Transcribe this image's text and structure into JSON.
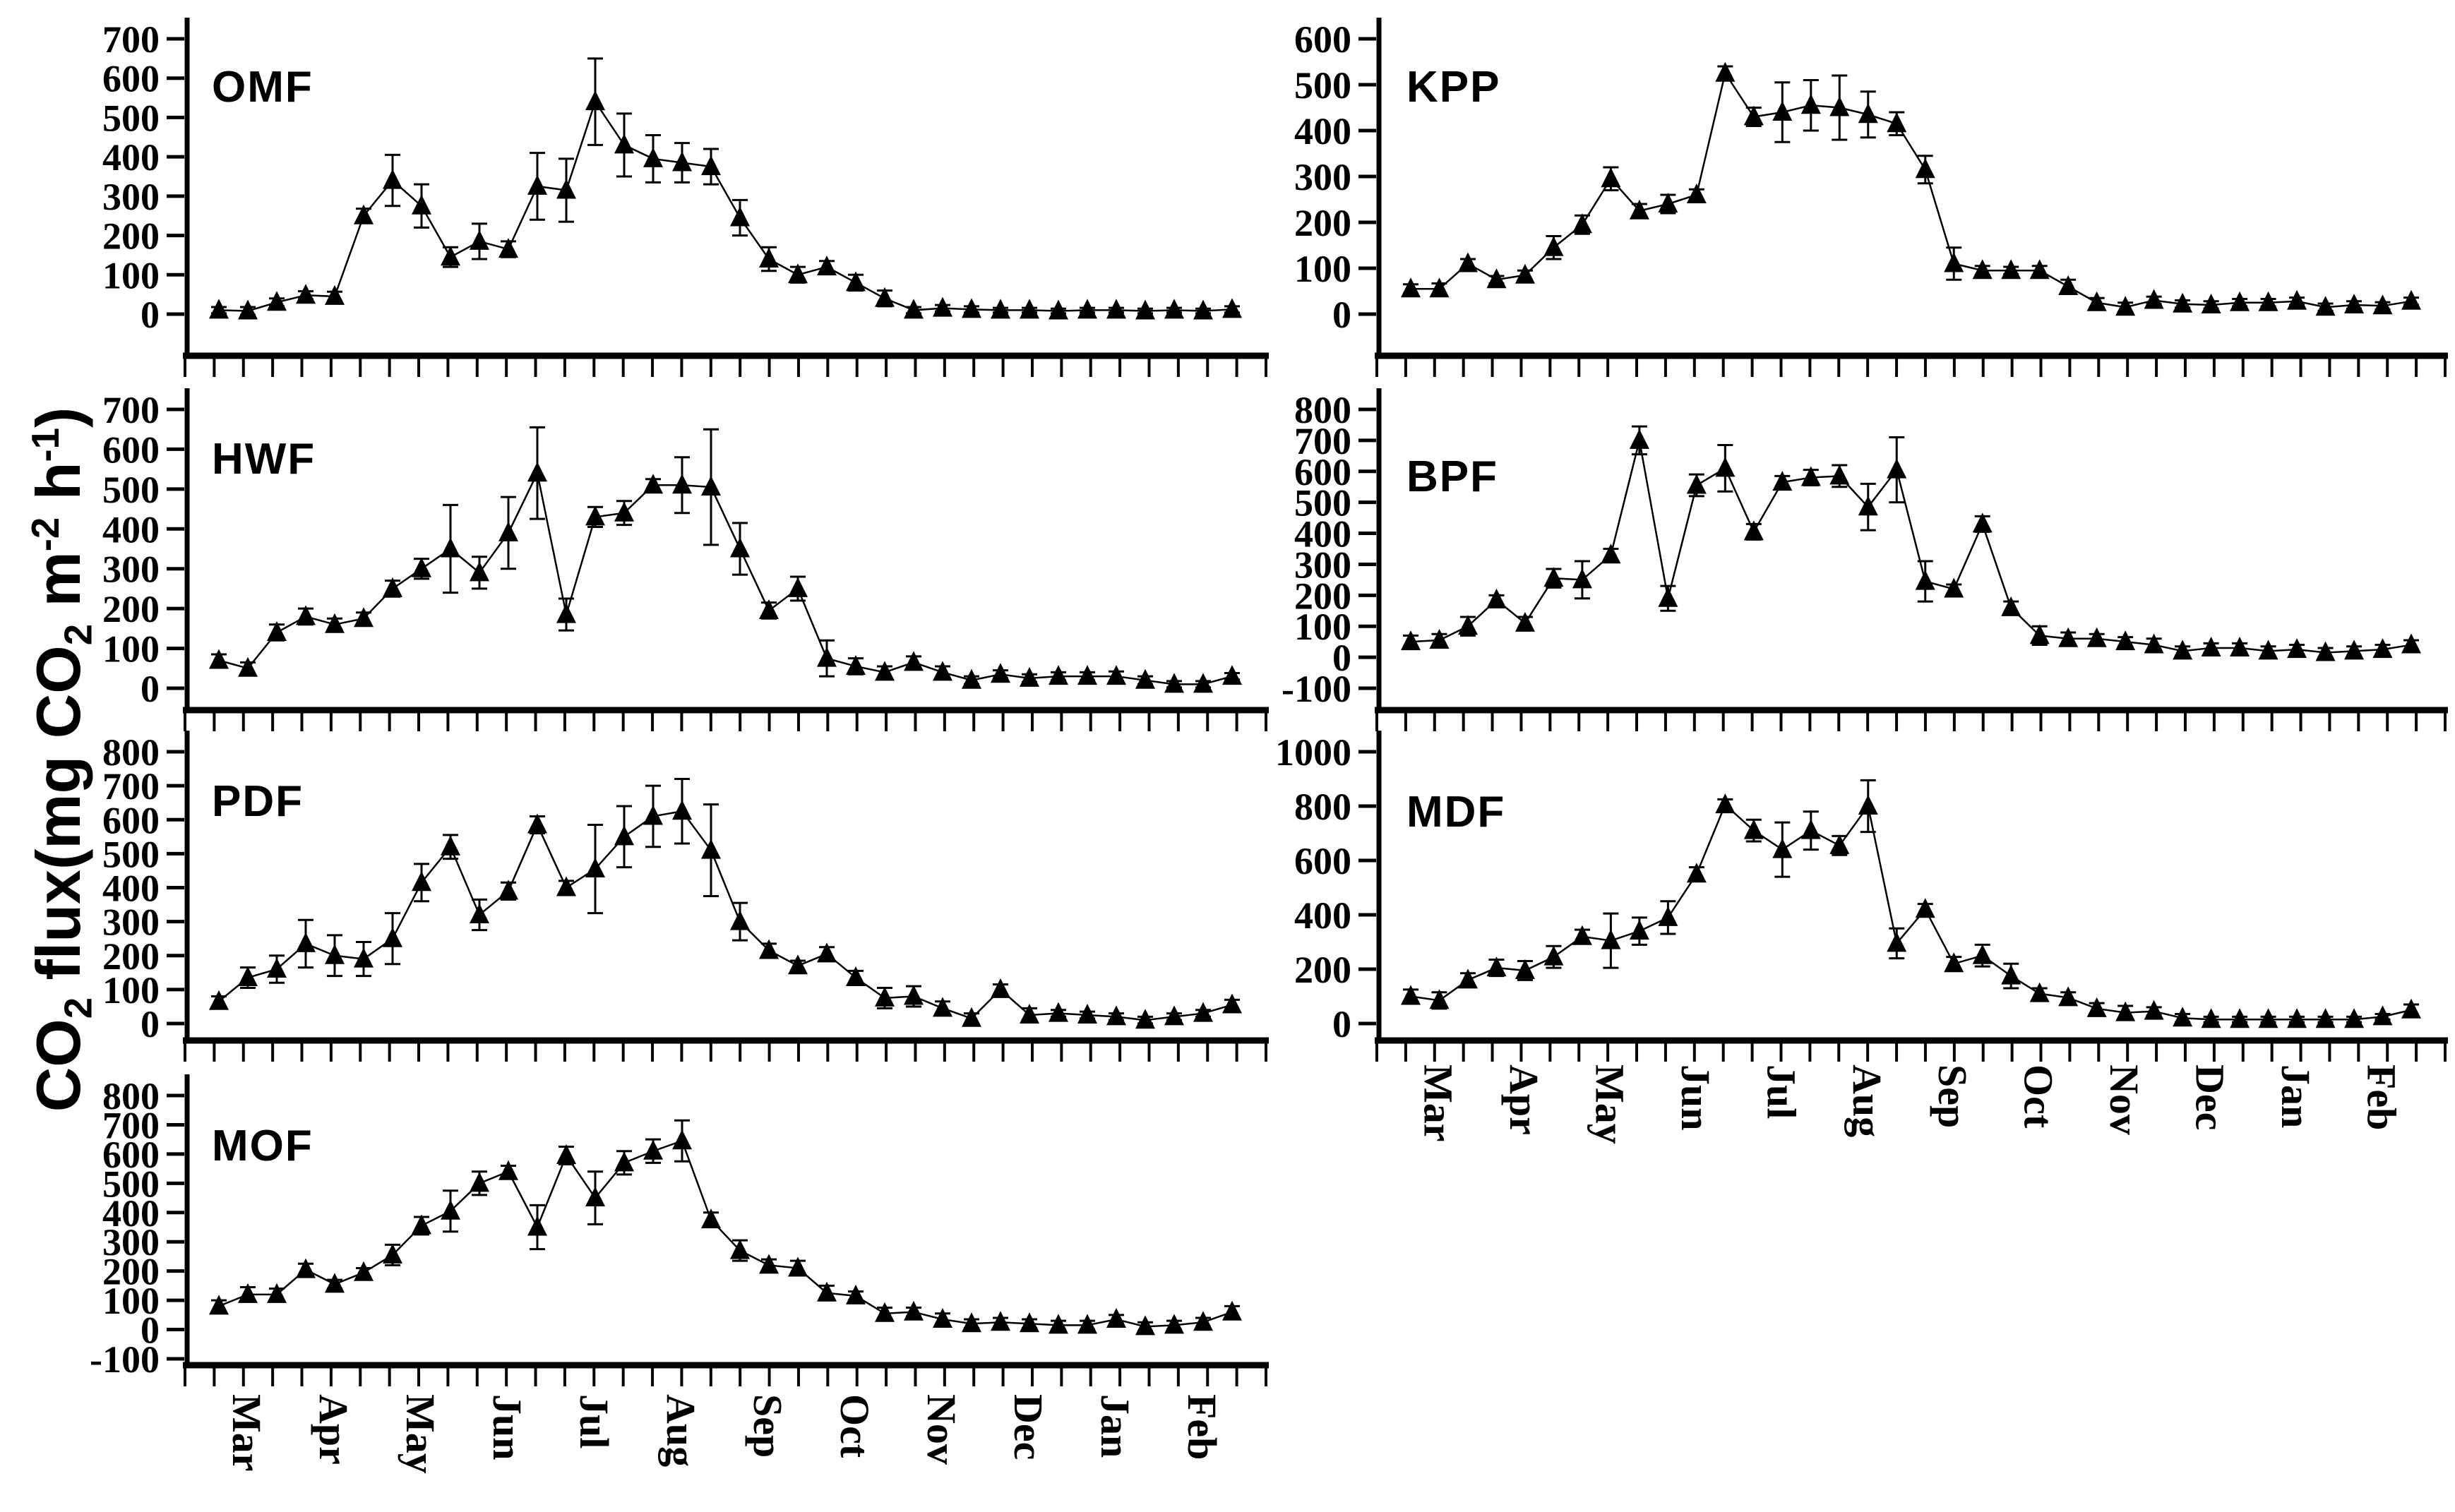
{
  "figure": {
    "background": "#ffffff",
    "series_color": "#000000",
    "marker": "filled-triangle-up",
    "error_bars": "plus-minus-with-caps",
    "ylabel_segments": [
      {
        "text": "CO"
      },
      {
        "text": "2",
        "style": "sub"
      },
      {
        "text": " flux(mg CO"
      },
      {
        "text": "2",
        "style": "sub"
      },
      {
        "text": " m"
      },
      {
        "text": "-2",
        "style": "sup"
      },
      {
        "text": " h"
      },
      {
        "text": "-1",
        "style": "sup"
      },
      {
        "text": ")"
      }
    ]
  },
  "chart_data": {
    "type": "line",
    "x_categories": [
      "Mar",
      "Apr",
      "May",
      "Jun",
      "Jul",
      "Aug",
      "Sep",
      "Oct",
      "Nov",
      "Dec",
      "Jan",
      "Feb"
    ],
    "points_per_month": 3,
    "legend": "none",
    "grid": "off",
    "panels": [
      {
        "title": "OMF",
        "ylim": [
          0,
          700
        ],
        "ytick_step": 100,
        "values": [
          10,
          8,
          30,
          48,
          45,
          250,
          340,
          275,
          145,
          185,
          165,
          325,
          315,
          540,
          430,
          395,
          385,
          375,
          245,
          140,
          100,
          120,
          80,
          40,
          10,
          15,
          12,
          10,
          10,
          8,
          10,
          10,
          8,
          10,
          8,
          12
        ],
        "errors": [
          8,
          10,
          10,
          10,
          12,
          18,
          65,
          55,
          25,
          45,
          20,
          85,
          80,
          110,
          80,
          60,
          50,
          45,
          45,
          30,
          20,
          15,
          20,
          20,
          8,
          8,
          8,
          6,
          6,
          6,
          6,
          6,
          6,
          6,
          6,
          8
        ]
      },
      {
        "title": "KPP",
        "ylim": [
          0,
          600
        ],
        "ytick_step": 100,
        "values": [
          55,
          55,
          110,
          75,
          85,
          145,
          195,
          295,
          225,
          240,
          260,
          525,
          430,
          440,
          455,
          450,
          435,
          415,
          315,
          110,
          95,
          95,
          95,
          60,
          25,
          15,
          30,
          22,
          20,
          25,
          25,
          28,
          15,
          20,
          18,
          28
        ],
        "errors": [
          10,
          12,
          10,
          8,
          10,
          25,
          20,
          25,
          15,
          20,
          12,
          15,
          20,
          65,
          55,
          70,
          50,
          25,
          30,
          35,
          10,
          8,
          10,
          15,
          10,
          10,
          8,
          8,
          8,
          8,
          8,
          8,
          8,
          8,
          8,
          8
        ]
      },
      {
        "title": "HWF",
        "ylim": [
          0,
          700
        ],
        "ytick_step": 100,
        "values": [
          70,
          50,
          140,
          180,
          160,
          175,
          250,
          300,
          350,
          290,
          390,
          540,
          185,
          430,
          440,
          510,
          510,
          505,
          350,
          195,
          250,
          75,
          55,
          40,
          65,
          40,
          20,
          35,
          25,
          30,
          30,
          30,
          20,
          10,
          10,
          30
        ],
        "errors": [
          15,
          15,
          20,
          20,
          15,
          15,
          20,
          25,
          110,
          40,
          90,
          115,
          40,
          25,
          30,
          15,
          70,
          145,
          65,
          20,
          30,
          45,
          20,
          15,
          15,
          15,
          10,
          10,
          10,
          10,
          10,
          12,
          10,
          8,
          8,
          8
        ]
      },
      {
        "title": "BPF",
        "ylim": [
          -100,
          800
        ],
        "ytick_step": 100,
        "values": [
          50,
          55,
          100,
          185,
          110,
          255,
          250,
          330,
          700,
          190,
          555,
          610,
          405,
          565,
          580,
          585,
          485,
          605,
          245,
          220,
          430,
          160,
          70,
          60,
          60,
          50,
          40,
          20,
          30,
          30,
          20,
          25,
          15,
          20,
          25,
          40
        ],
        "errors": [
          20,
          20,
          30,
          15,
          20,
          30,
          60,
          20,
          45,
          40,
          35,
          75,
          25,
          20,
          25,
          35,
          75,
          105,
          65,
          15,
          25,
          20,
          30,
          20,
          15,
          15,
          20,
          15,
          15,
          15,
          15,
          15,
          15,
          15,
          15,
          15
        ]
      },
      {
        "title": "PDF",
        "ylim": [
          0,
          800
        ],
        "ytick_step": 100,
        "values": [
          65,
          135,
          160,
          235,
          200,
          190,
          250,
          415,
          520,
          320,
          390,
          585,
          400,
          455,
          550,
          610,
          625,
          510,
          300,
          215,
          170,
          205,
          135,
          75,
          80,
          45,
          15,
          100,
          25,
          30,
          25,
          20,
          10,
          20,
          30,
          55
        ],
        "errors": [
          15,
          30,
          40,
          70,
          60,
          50,
          75,
          55,
          35,
          45,
          25,
          25,
          20,
          130,
          90,
          90,
          95,
          135,
          55,
          20,
          15,
          20,
          20,
          30,
          30,
          20,
          15,
          15,
          20,
          10,
          10,
          10,
          10,
          10,
          10,
          15
        ]
      },
      {
        "title": "MDF",
        "ylim": [
          0,
          1000
        ],
        "ytick_step": 200,
        "values": [
          100,
          85,
          160,
          205,
          195,
          245,
          320,
          305,
          340,
          390,
          550,
          805,
          710,
          640,
          710,
          655,
          800,
          295,
          420,
          220,
          250,
          175,
          110,
          95,
          55,
          40,
          45,
          20,
          15,
          15,
          15,
          15,
          15,
          15,
          25,
          50
        ],
        "errors": [
          25,
          30,
          25,
          30,
          35,
          40,
          25,
          100,
          50,
          60,
          25,
          20,
          40,
          100,
          70,
          35,
          95,
          55,
          20,
          25,
          40,
          45,
          20,
          20,
          20,
          25,
          15,
          15,
          10,
          10,
          10,
          10,
          10,
          10,
          10,
          20
        ]
      },
      {
        "title": "MOF",
        "ylim": [
          -100,
          800
        ],
        "ytick_step": 100,
        "values": [
          80,
          120,
          120,
          205,
          155,
          195,
          255,
          355,
          405,
          500,
          540,
          350,
          595,
          450,
          570,
          610,
          645,
          375,
          270,
          220,
          210,
          125,
          115,
          55,
          60,
          35,
          20,
          25,
          20,
          15,
          15,
          35,
          10,
          15,
          25,
          60
        ],
        "errors": [
          20,
          25,
          20,
          20,
          15,
          15,
          35,
          30,
          70,
          40,
          20,
          75,
          30,
          90,
          40,
          40,
          70,
          25,
          35,
          20,
          25,
          25,
          15,
          20,
          15,
          20,
          15,
          15,
          15,
          15,
          15,
          15,
          15,
          15,
          15,
          20
        ]
      }
    ]
  }
}
